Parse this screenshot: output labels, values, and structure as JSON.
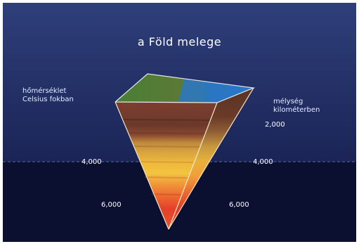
{
  "title": "a Föld melege",
  "legend_left": [
    "hőmérséklet",
    "Celsius fokban"
  ],
  "legend_right": [
    "mélység",
    "kilométerben"
  ],
  "depth_labels": {
    "right_top": "2,000",
    "left_mid": "4,000",
    "right_mid": "4,000",
    "left_low": "6,000",
    "right_low": "6,000"
  },
  "colors": {
    "sky_top": "#2f3f7a",
    "sky_bottom": "#1a2456",
    "deep_band": "#0c1030",
    "surface_green": "#3f8a3c",
    "ocean_blue": "#2a76c4",
    "crust_brown": "#5a3324",
    "core_red": "#e4322a",
    "core_yellow": "#f2b43a"
  }
}
